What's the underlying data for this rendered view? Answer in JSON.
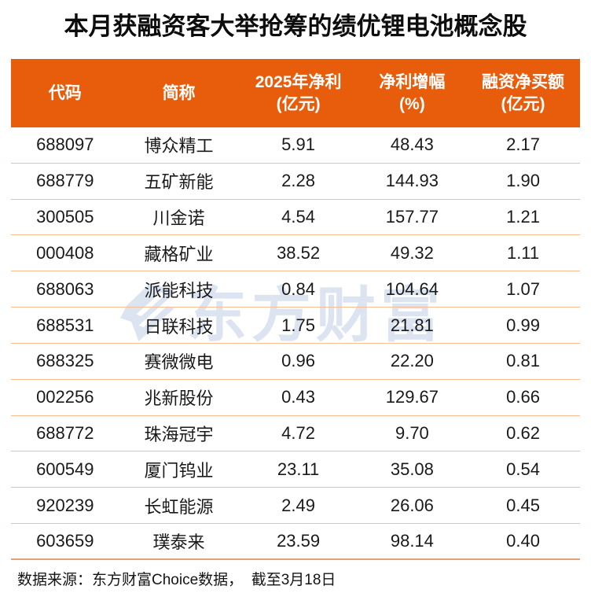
{
  "title": "本月获融资客大举抢筹的绩优锂电池概念股",
  "table": {
    "headers": [
      {
        "line1": "代码",
        "line2": ""
      },
      {
        "line1": "简称",
        "line2": ""
      },
      {
        "line1": "2025年净利",
        "line2": "(亿元)"
      },
      {
        "line1": "净利增幅",
        "line2": "(%)"
      },
      {
        "line1": "融资净买额",
        "line2": "(亿元)"
      }
    ],
    "rows": [
      [
        "688097",
        "博众精工",
        "5.91",
        "48.43",
        "2.17"
      ],
      [
        "688779",
        "五矿新能",
        "2.28",
        "144.93",
        "1.90"
      ],
      [
        "300505",
        "川金诺",
        "4.54",
        "157.77",
        "1.21"
      ],
      [
        "000408",
        "藏格矿业",
        "38.52",
        "49.32",
        "1.11"
      ],
      [
        "688063",
        "派能科技",
        "0.84",
        "104.64",
        "1.07"
      ],
      [
        "688531",
        "日联科技",
        "1.75",
        "21.81",
        "0.99"
      ],
      [
        "688325",
        "赛微微电",
        "0.96",
        "22.20",
        "0.81"
      ],
      [
        "002256",
        "兆新股份",
        "0.43",
        "129.67",
        "0.66"
      ],
      [
        "688772",
        "珠海冠宇",
        "4.72",
        "9.70",
        "0.62"
      ],
      [
        "600549",
        "厦门钨业",
        "23.11",
        "35.08",
        "0.54"
      ],
      [
        "920239",
        "长虹能源",
        "2.49",
        "26.06",
        "0.45"
      ],
      [
        "603659",
        "璞泰来",
        "23.59",
        "98.14",
        "0.40"
      ]
    ]
  },
  "watermark": {
    "text": "东方财富"
  },
  "footer": {
    "text": "数据来源：东方财富Choice数据，  截至3月18日"
  },
  "colors": {
    "header_bg": "#E85D0C",
    "divider": "#F8BE93",
    "bottom_border": "#E2A074",
    "watermark": "#DBE4F0",
    "text": "#1A1A1A"
  },
  "chart_data": {
    "type": "table",
    "title": "本月获融资客大举抢筹的绩优锂电池概念股",
    "columns": [
      "代码",
      "简称",
      "2025年净利(亿元)",
      "净利增幅(%)",
      "融资净买额(亿元)"
    ],
    "series": [
      {
        "name": "2025年净利(亿元)",
        "values": [
          5.91,
          2.28,
          4.54,
          38.52,
          0.84,
          1.75,
          0.96,
          0.43,
          4.72,
          23.11,
          2.49,
          23.59
        ]
      },
      {
        "name": "净利增幅(%)",
        "values": [
          48.43,
          144.93,
          157.77,
          49.32,
          104.64,
          21.81,
          22.2,
          129.67,
          9.7,
          35.08,
          26.06,
          98.14
        ]
      },
      {
        "name": "融资净买额(亿元)",
        "values": [
          2.17,
          1.9,
          1.21,
          1.11,
          1.07,
          0.99,
          0.81,
          0.66,
          0.62,
          0.54,
          0.45,
          0.4
        ]
      }
    ],
    "categories": [
      "688097 博众精工",
      "688779 五矿新能",
      "300505 川金诺",
      "000408 藏格矿业",
      "688063 派能科技",
      "688531 日联科技",
      "688325 赛微微电",
      "002256 兆新股份",
      "688772 珠海冠宇",
      "600549 厦门钨业",
      "920239 长虹能源",
      "603659 璞泰来"
    ],
    "source_note": "数据来源：东方财富Choice数据，  截至3月18日"
  }
}
